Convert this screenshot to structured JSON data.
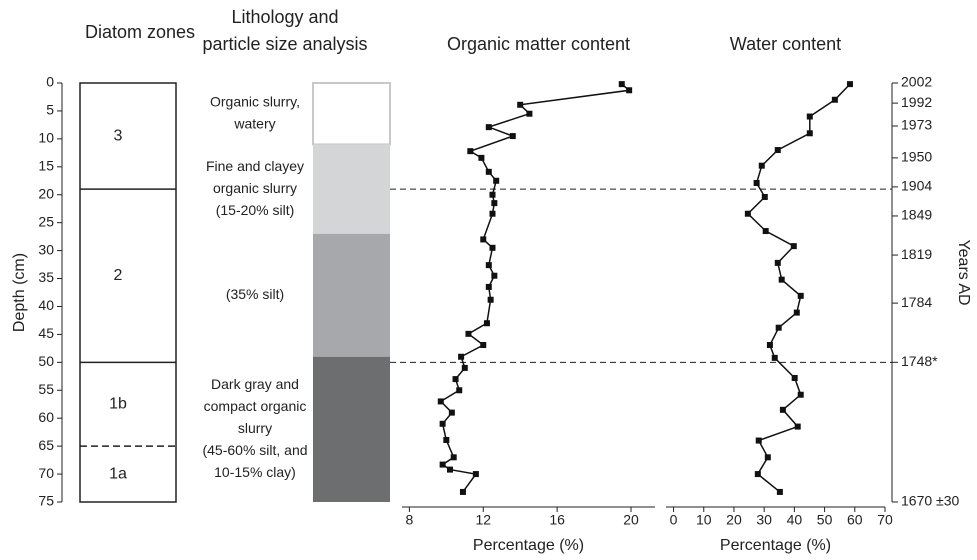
{
  "chart_data": {
    "type": "line",
    "depth_label": "Depth (cm)",
    "ylim": [
      0,
      75
    ],
    "yticks": [
      0,
      5,
      10,
      15,
      20,
      25,
      30,
      35,
      40,
      45,
      50,
      55,
      60,
      65,
      70,
      75
    ],
    "zones": {
      "title": "Diatom zones",
      "items": [
        {
          "label": "3",
          "top": 0,
          "bottom": 19,
          "line": "solid"
        },
        {
          "label": "2",
          "top": 19,
          "bottom": 50,
          "line": "solid"
        },
        {
          "label": "1b",
          "top": 50,
          "bottom": 65,
          "line": "dashed"
        },
        {
          "label": "1a",
          "top": 65,
          "bottom": 75,
          "line": "none"
        }
      ]
    },
    "lithology": {
      "title": [
        "Lithology and",
        "particle size analysis"
      ],
      "layers": [
        {
          "top": 0,
          "bottom": 11,
          "color": "#ffffff",
          "label": [
            "Organic slurry,",
            "watery"
          ]
        },
        {
          "top": 11,
          "bottom": 27,
          "color": "#d4d5d7",
          "label": [
            "Fine and clayey",
            "organic slurry",
            "(15-20% silt)"
          ]
        },
        {
          "top": 27,
          "bottom": 49,
          "color": "#a6a8ab",
          "label": [
            "(35% silt)"
          ]
        },
        {
          "top": 49,
          "bottom": 75,
          "color": "#6d6e70",
          "label": [
            "Dark gray and",
            "compact organic",
            "slurry",
            "(45-60% silt, and",
            "10-15% clay)"
          ]
        }
      ]
    },
    "organic": {
      "title": "Organic matter content",
      "xlabel": "Percentage (%)",
      "xlim": [
        7.6,
        21.3
      ],
      "xticks": [
        8,
        12,
        16,
        20
      ],
      "color": "#111111",
      "depth": [
        0.2,
        1.3,
        3.9,
        5.5,
        7.9,
        9.5,
        12.2,
        13.4,
        15.9,
        17.5,
        20,
        21.5,
        23.4,
        28,
        29.5,
        32.6,
        34.5,
        36.5,
        38.8,
        43,
        44.9,
        46.9,
        49,
        51,
        53,
        55,
        57,
        59,
        61,
        63.9,
        67,
        68.3,
        69.2,
        70,
        73.2
      ],
      "values": [
        19.5,
        19.9,
        14.0,
        14.5,
        12.3,
        13.6,
        11.3,
        11.9,
        12.3,
        12.7,
        12.5,
        12.6,
        12.5,
        12.0,
        12.5,
        12.3,
        12.6,
        12.3,
        12.4,
        12.2,
        11.2,
        12.0,
        10.8,
        11.0,
        10.5,
        10.7,
        9.7,
        10.3,
        9.8,
        10.0,
        10.4,
        9.8,
        10.2,
        11.6,
        10.9
      ]
    },
    "water": {
      "title": "Water content",
      "xlabel": "Percentage (%)",
      "xlim": [
        -2.5,
        70
      ],
      "xticks": [
        0,
        10,
        20,
        30,
        40,
        50,
        60,
        70
      ],
      "color": "#111111",
      "depth": [
        0.2,
        3,
        6,
        9,
        12,
        14.8,
        17.9,
        20.4,
        23.4,
        26.5,
        29.2,
        32.2,
        35.2,
        38.1,
        41.1,
        43.8,
        46.9,
        49.2,
        52.8,
        55.8,
        58.5,
        61.5,
        64,
        67,
        70,
        73.2
      ],
      "values": [
        58.4,
        53.4,
        45.1,
        45.1,
        34.5,
        29.2,
        27.5,
        30.2,
        24.6,
        30.5,
        39.8,
        34.5,
        35.8,
        42.1,
        40.8,
        34.8,
        31.9,
        33.5,
        40.1,
        42.1,
        36.2,
        41.1,
        28.2,
        31.2,
        27.9,
        35.2
      ]
    },
    "years": {
      "label": "Years AD",
      "ticks": [
        {
          "value": 0,
          "label": "2002"
        },
        {
          "value": 3.6,
          "label": "1992"
        },
        {
          "value": 7.7,
          "label": "1973"
        },
        {
          "value": 13.4,
          "label": "1950"
        },
        {
          "value": 18.6,
          "label": "1904"
        },
        {
          "value": 23.8,
          "label": "1849"
        },
        {
          "value": 30.8,
          "label": "1819"
        },
        {
          "value": 39.4,
          "label": "1784"
        },
        {
          "value": 50,
          "label": "1748*"
        },
        {
          "value": 75,
          "label": "1670 ±30"
        }
      ]
    }
  }
}
